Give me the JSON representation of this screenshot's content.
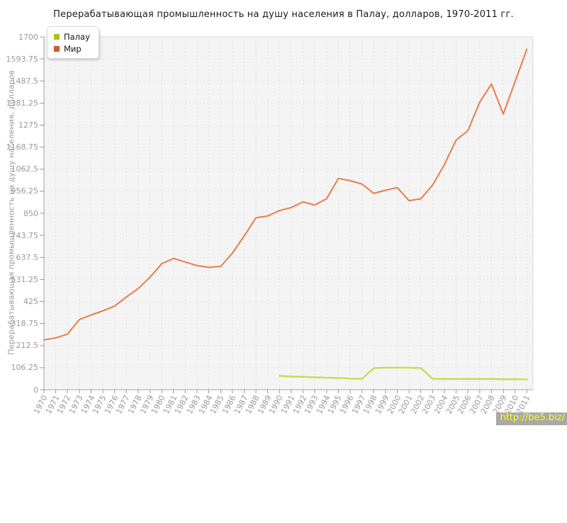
{
  "title": "Перерабатывающая промышленность на душу населения в Палау, долларов, 1970-2011 гг.",
  "watermark": {
    "text": "http://be5.biz/",
    "bg": "#a8a8a8",
    "color": "#ffff00"
  },
  "y_axis": {
    "title": "Перерабатывающая промышленность на душу населения, долларов",
    "tick_labels": [
      "0",
      "106.25",
      "212.5",
      "318.75",
      "425",
      "531.25",
      "637.5",
      "743.75",
      "850",
      "956.25",
      "1062.5",
      "1168.75",
      "1275",
      "1381.25",
      "1487.5",
      "1593.75",
      "1700"
    ],
    "tick_step": 106.25
  },
  "x_axis": {
    "tick_labels": [
      "1970",
      "1971",
      "1972",
      "1973",
      "1974",
      "1975",
      "1976",
      "1977",
      "1978",
      "1979",
      "1980",
      "1981",
      "1982",
      "1983",
      "1984",
      "1985",
      "1986",
      "1987",
      "1988",
      "1989",
      "1990",
      "1991",
      "1992",
      "1993",
      "1994",
      "1995",
      "1996",
      "1997",
      "1998",
      "1999",
      "2000",
      "2001",
      "2002",
      "2003",
      "2004",
      "2005",
      "2006",
      "2007",
      "2008",
      "2009",
      "2010",
      "2011"
    ]
  },
  "legend": {
    "items": [
      {
        "key": "palau",
        "label": "Палау",
        "color": "#a6c713"
      },
      {
        "key": "mir",
        "label": "Мир",
        "color": "#cb5c26"
      }
    ]
  },
  "chart_data": {
    "type": "line",
    "title": "Перерабатывающая промышленность на душу населения в Палау, долларов, 1970-2011 гг.",
    "xlabel": "",
    "ylabel": "Перерабатывающая промышленность на душу населения, долларов",
    "x": [
      1970,
      1971,
      1972,
      1973,
      1974,
      1975,
      1976,
      1977,
      1978,
      1979,
      1980,
      1981,
      1982,
      1983,
      1984,
      1985,
      1986,
      1987,
      1988,
      1989,
      1990,
      1991,
      1992,
      1993,
      1994,
      1995,
      1996,
      1997,
      1998,
      1999,
      2000,
      2001,
      2002,
      2003,
      2004,
      2005,
      2006,
      2007,
      2008,
      2009,
      2010,
      2011
    ],
    "ylim": [
      0,
      1700
    ],
    "grid": true,
    "legend_position": "top-left",
    "series": [
      {
        "name": "Палау",
        "key": "palau",
        "color": "#c8dc55",
        "line_width": 2.5,
        "values": [
          null,
          null,
          null,
          null,
          null,
          null,
          null,
          null,
          null,
          null,
          null,
          null,
          null,
          null,
          null,
          null,
          null,
          null,
          null,
          null,
          67,
          64,
          62,
          60,
          58,
          57,
          54,
          53,
          104,
          107,
          107,
          106,
          105,
          53,
          52,
          52,
          52,
          52,
          52,
          51,
          51,
          50
        ]
      },
      {
        "name": "Мир",
        "key": "mir",
        "color": "#e87c4a",
        "line_width": 2,
        "values": [
          240,
          250,
          268,
          338,
          360,
          380,
          403,
          447,
          487,
          542,
          607,
          633,
          615,
          598,
          590,
          594,
          658,
          741,
          828,
          837,
          863,
          878,
          905,
          890,
          920,
          1018,
          1007,
          991,
          946,
          961,
          974,
          911,
          920,
          986,
          1085,
          1203,
          1248,
          1385,
          1473,
          1328,
          1484,
          1640
        ]
      }
    ]
  }
}
